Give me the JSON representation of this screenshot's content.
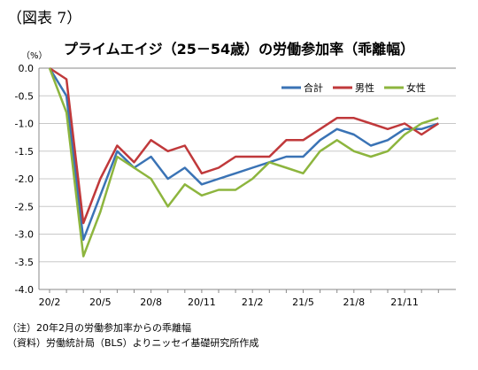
{
  "figure_label": "（図表 7）",
  "notes": [
    "（注）20年2月の労働参加率からの乖離幅",
    "（資料）労働統計局（BLS）よりニッセイ基礎研究所作成"
  ],
  "chart_data": {
    "type": "line",
    "title": "プライムエイジ（25－54歳）の労働参加率（乖離幅）",
    "unit": "（%）",
    "xlabel": "",
    "ylabel": "",
    "ylim": [
      -4.0,
      0.0
    ],
    "yticks": [
      "0.0",
      "-0.5",
      "-1.0",
      "-1.5",
      "-2.0",
      "-2.5",
      "-3.0",
      "-3.5",
      "-4.0"
    ],
    "x": [
      "20/2",
      "20/3",
      "20/4",
      "20/5",
      "20/6",
      "20/7",
      "20/8",
      "20/9",
      "20/10",
      "20/11",
      "20/12",
      "21/1",
      "21/2",
      "21/3",
      "21/4",
      "21/5",
      "21/6",
      "21/7",
      "21/8",
      "21/9",
      "21/10",
      "21/11",
      "21/12",
      "22/1"
    ],
    "xtick_labels": [
      "20/2",
      "20/5",
      "20/8",
      "20/11",
      "21/2",
      "21/5",
      "21/8",
      "21/11"
    ],
    "legend_position": "top-right",
    "grid": "horizontal",
    "series": [
      {
        "name": "合計",
        "color": "#3a73b5",
        "values": [
          0.0,
          -0.5,
          -3.1,
          -2.3,
          -1.5,
          -1.8,
          -1.6,
          -2.0,
          -1.8,
          -2.1,
          -2.0,
          -1.9,
          -1.8,
          -1.7,
          -1.6,
          -1.6,
          -1.3,
          -1.1,
          -1.2,
          -1.4,
          -1.3,
          -1.1,
          -1.1,
          -1.0
        ]
      },
      {
        "name": "男性",
        "color": "#c0393b",
        "values": [
          0.0,
          -0.2,
          -2.8,
          -2.0,
          -1.4,
          -1.7,
          -1.3,
          -1.5,
          -1.4,
          -1.9,
          -1.8,
          -1.6,
          -1.6,
          -1.6,
          -1.3,
          -1.3,
          -1.1,
          -0.9,
          -0.9,
          -1.0,
          -1.1,
          -1.0,
          -1.2,
          -1.0
        ]
      },
      {
        "name": "女性",
        "color": "#8db53e",
        "values": [
          0.0,
          -0.8,
          -3.4,
          -2.6,
          -1.6,
          -1.8,
          -2.0,
          -2.5,
          -2.1,
          -2.3,
          -2.2,
          -2.2,
          -2.0,
          -1.7,
          -1.8,
          -1.9,
          -1.5,
          -1.3,
          -1.5,
          -1.6,
          -1.5,
          -1.2,
          -1.0,
          -0.9
        ]
      }
    ]
  }
}
